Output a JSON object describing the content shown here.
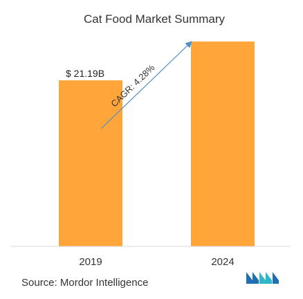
{
  "chart_data": {
    "type": "bar",
    "title": "Cat Food Market Summary",
    "categories": [
      "2019",
      "2024"
    ],
    "values": [
      21.19,
      26.14
    ],
    "value_labels": [
      "$ 21.19B",
      ""
    ],
    "annotation": "CAGR: 4.28%",
    "xlabel": "",
    "ylabel": "",
    "grid": false,
    "legend": "none",
    "bar_color": "#FFA53A",
    "arrow_color": "#4A90C8"
  },
  "footer": {
    "source": "Source: Mordor Intelligence",
    "logo_colors": [
      "#1F6FB2",
      "#2FB7C9"
    ]
  }
}
